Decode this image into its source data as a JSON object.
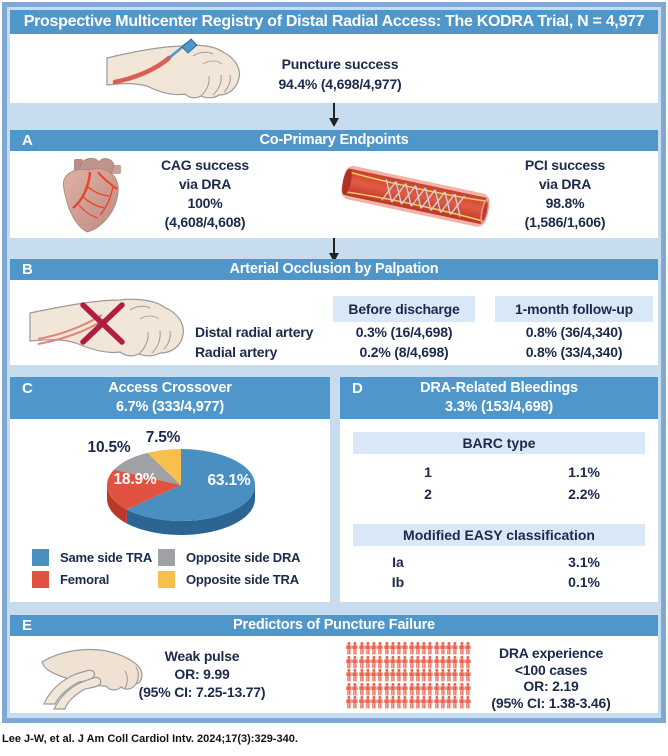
{
  "title_banner": "Prospective Multicenter Registry of Distal Radial Access: The KODRA Trial, N = 4,977",
  "top_panel": {
    "stat_lines": [
      "Puncture success",
      "94.4% (4,698/4,977)"
    ]
  },
  "panel_a": {
    "label": "A",
    "title": "Co-Primary Endpoints",
    "cag_lines": [
      "CAG success",
      "via DRA",
      "100%",
      "(4,608/4,608)"
    ],
    "pci_lines": [
      "PCI success",
      "via DRA",
      "98.8%",
      "(1,586/1,606)"
    ]
  },
  "panel_b": {
    "label": "B",
    "title": "Arterial Occlusion by Palpation",
    "columns": [
      "Before discharge",
      "1-month follow-up"
    ],
    "rows": [
      {
        "name": "Distal radial artery",
        "values": [
          "0.3% (16/4,698)",
          "0.8% (36/4,340)"
        ]
      },
      {
        "name": "Radial artery",
        "values": [
          "0.2% (8/4,698)",
          "0.8% (33/4,340)"
        ]
      }
    ]
  },
  "panel_c": {
    "label": "C",
    "title_line1": "Access Crossover",
    "title_line2": "6.7% (333/4,977)"
  },
  "chart_data": {
    "type": "pie",
    "title": "Access Crossover 6.7% (333/4,977)",
    "labels": [
      "Same side TRA",
      "Femoral",
      "Opposite side DRA",
      "Opposite side TRA"
    ],
    "values": [
      63.1,
      18.9,
      10.5,
      7.5
    ],
    "value_labels": [
      "63.1%",
      "18.9%",
      "10.5%",
      "7.5%"
    ],
    "colors": [
      "#4A8FC2",
      "#E25240",
      "#9FA1A4",
      "#F8BF4F"
    ],
    "side_colors": [
      "#2C6593",
      "#B93A2B",
      "#7D7F82",
      "#D99E2F"
    ],
    "start_angle_deg": 0,
    "legend_position": "bottom"
  },
  "panel_d": {
    "label": "D",
    "title_line1": "DRA-Related Bleedings",
    "title_line2": "3.3% (153/4,698)",
    "sections": [
      {
        "header": "BARC type",
        "rows": [
          {
            "k": "1",
            "v": "1.1%"
          },
          {
            "k": "2",
            "v": "2.2%"
          }
        ]
      },
      {
        "header": "Modified EASY classification",
        "rows": [
          {
            "k": "Ia",
            "v": "3.1%"
          },
          {
            "k": "Ib",
            "v": "0.1%"
          }
        ]
      }
    ]
  },
  "panel_e": {
    "label": "E",
    "title": "Predictors of Puncture Failure",
    "weak_pulse_lines": [
      "Weak pulse",
      "OR: 9.99",
      "(95% CI: 7.25-13.77)"
    ],
    "dra_exp_lines": [
      "DRA experience",
      "<100 cases",
      "OR: 2.19",
      "(95% CI: 1.38-3.46)"
    ],
    "pictogram_count": 100
  },
  "citation": "Lee J-W, et al. J Am Coll Cardiol Intv. 2024;17(3):329-340.",
  "colors": {
    "banner_blue": "#4F96CB",
    "background_blue": "#C7DDEF",
    "border_blue": "#7FA9D2",
    "header_band_blue": "#D9E8F6",
    "dark_text": "#1B2A4C",
    "person_red": "#E8604C",
    "artery_red": "#D95F52",
    "cross_red": "#B01E41",
    "needle_blue": "#4E96CB",
    "skin": "#F2E6D8"
  }
}
